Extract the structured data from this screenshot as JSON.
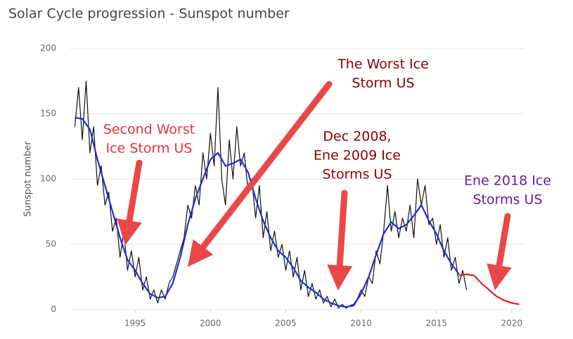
{
  "chart_data": {
    "type": "line",
    "title": "Solar Cycle progression - Sunspot number",
    "y_label": "Sunspot number",
    "xlim": [
      1990.7,
      2020.8
    ],
    "xticks": [
      1995,
      2000,
      2005,
      2010,
      2015,
      2020
    ],
    "ylim": [
      0,
      200
    ],
    "yticks": [
      0,
      50,
      100,
      150,
      200
    ],
    "grid": true,
    "series": [
      {
        "color": "#111111",
        "x": [
          1991,
          1991.25,
          1991.5,
          1991.75,
          1992,
          1992.25,
          1992.5,
          1992.75,
          1993,
          1993.25,
          1993.5,
          1993.75,
          1994,
          1994.25,
          1994.5,
          1994.75,
          1995,
          1995.25,
          1995.5,
          1995.75,
          1996,
          1996.25,
          1996.5,
          1996.75,
          1997,
          1997.25,
          1997.5,
          1997.75,
          1998,
          1998.25,
          1998.5,
          1998.75,
          1999,
          1999.25,
          1999.5,
          1999.75,
          2000,
          2000.25,
          2000.5,
          2000.75,
          2001,
          2001.25,
          2001.5,
          2001.75,
          2002,
          2002.25,
          2002.5,
          2002.75,
          2003,
          2003.25,
          2003.5,
          2003.75,
          2004,
          2004.25,
          2004.5,
          2004.75,
          2005,
          2005.25,
          2005.5,
          2005.75,
          2006,
          2006.25,
          2006.5,
          2006.75,
          2007,
          2007.25,
          2007.5,
          2007.75,
          2008,
          2008.25,
          2008.5,
          2008.75,
          2009,
          2009.25,
          2009.5,
          2009.75,
          2010,
          2010.25,
          2010.5,
          2010.75,
          2011,
          2011.25,
          2011.5,
          2011.75,
          2012,
          2012.25,
          2012.5,
          2012.75,
          2013,
          2013.25,
          2013.5,
          2013.75,
          2014,
          2014.25,
          2014.5,
          2014.75,
          2015,
          2015.25,
          2015.5,
          2015.75,
          2016,
          2016.25,
          2016.5,
          2016.75,
          2017
        ],
        "values": [
          140,
          170,
          130,
          175,
          120,
          140,
          95,
          110,
          80,
          90,
          60,
          70,
          40,
          60,
          30,
          45,
          25,
          40,
          15,
          25,
          8,
          15,
          5,
          15,
          8,
          20,
          25,
          35,
          45,
          55,
          80,
          70,
          95,
          80,
          120,
          100,
          135,
          110,
          170,
          100,
          80,
          130,
          100,
          140,
          110,
          120,
          90,
          100,
          70,
          95,
          55,
          75,
          45,
          60,
          40,
          50,
          30,
          45,
          25,
          40,
          15,
          30,
          10,
          20,
          8,
          15,
          5,
          10,
          2,
          8,
          1,
          4,
          1,
          3,
          4,
          8,
          15,
          10,
          25,
          20,
          45,
          35,
          60,
          95,
          60,
          75,
          55,
          70,
          60,
          80,
          55,
          100,
          80,
          95,
          65,
          70,
          50,
          65,
          40,
          55,
          30,
          40,
          20,
          30,
          15
        ]
      },
      {
        "color": "#1f2fd0",
        "x": [
          1991,
          1991.5,
          1992,
          1992.5,
          1993,
          1993.5,
          1994,
          1994.5,
          1995,
          1995.5,
          1996,
          1996.5,
          1997,
          1997.5,
          1998,
          1998.5,
          1999,
          1999.5,
          2000,
          2000.5,
          2001,
          2001.5,
          2002,
          2002.5,
          2003,
          2003.5,
          2004,
          2004.5,
          2005,
          2005.5,
          2006,
          2006.5,
          2007,
          2007.5,
          2008,
          2008.5,
          2009,
          2009.5,
          2010,
          2010.5,
          2011,
          2011.5,
          2012,
          2012.5,
          2013,
          2013.5,
          2014,
          2014.5,
          2015,
          2015.5,
          2016,
          2016.5
        ],
        "values": [
          147,
          146,
          138,
          115,
          95,
          75,
          55,
          38,
          30,
          20,
          12,
          9,
          10,
          20,
          40,
          65,
          85,
          100,
          115,
          120,
          110,
          112,
          115,
          105,
          85,
          68,
          55,
          45,
          40,
          32,
          22,
          17,
          13,
          8,
          5,
          3,
          2,
          3,
          12,
          25,
          42,
          58,
          67,
          62,
          65,
          72,
          80,
          68,
          58,
          45,
          35,
          27
        ]
      },
      {
        "color": "#e02020",
        "x": [
          2016.5,
          2017,
          2017.5,
          2018,
          2018.5,
          2019,
          2019.5,
          2020,
          2020.5
        ],
        "values": [
          26,
          27,
          26,
          20,
          15,
          10,
          7,
          5,
          4
        ]
      }
    ],
    "annotations": [
      {
        "lines": [
          "Second Worst",
          "Ice Storm US"
        ],
        "color": "#e8323a"
      },
      {
        "lines": [
          "The Worst Ice",
          "Storm US"
        ],
        "color": "#8b0000"
      },
      {
        "lines": [
          "Dec 2008,",
          "Ene 2009 Ice",
          "Storms US"
        ],
        "color": "#8b0000"
      },
      {
        "lines": [
          "Ene 2018 Ice",
          "Storms US"
        ],
        "color": "#6a1b9a"
      }
    ]
  }
}
